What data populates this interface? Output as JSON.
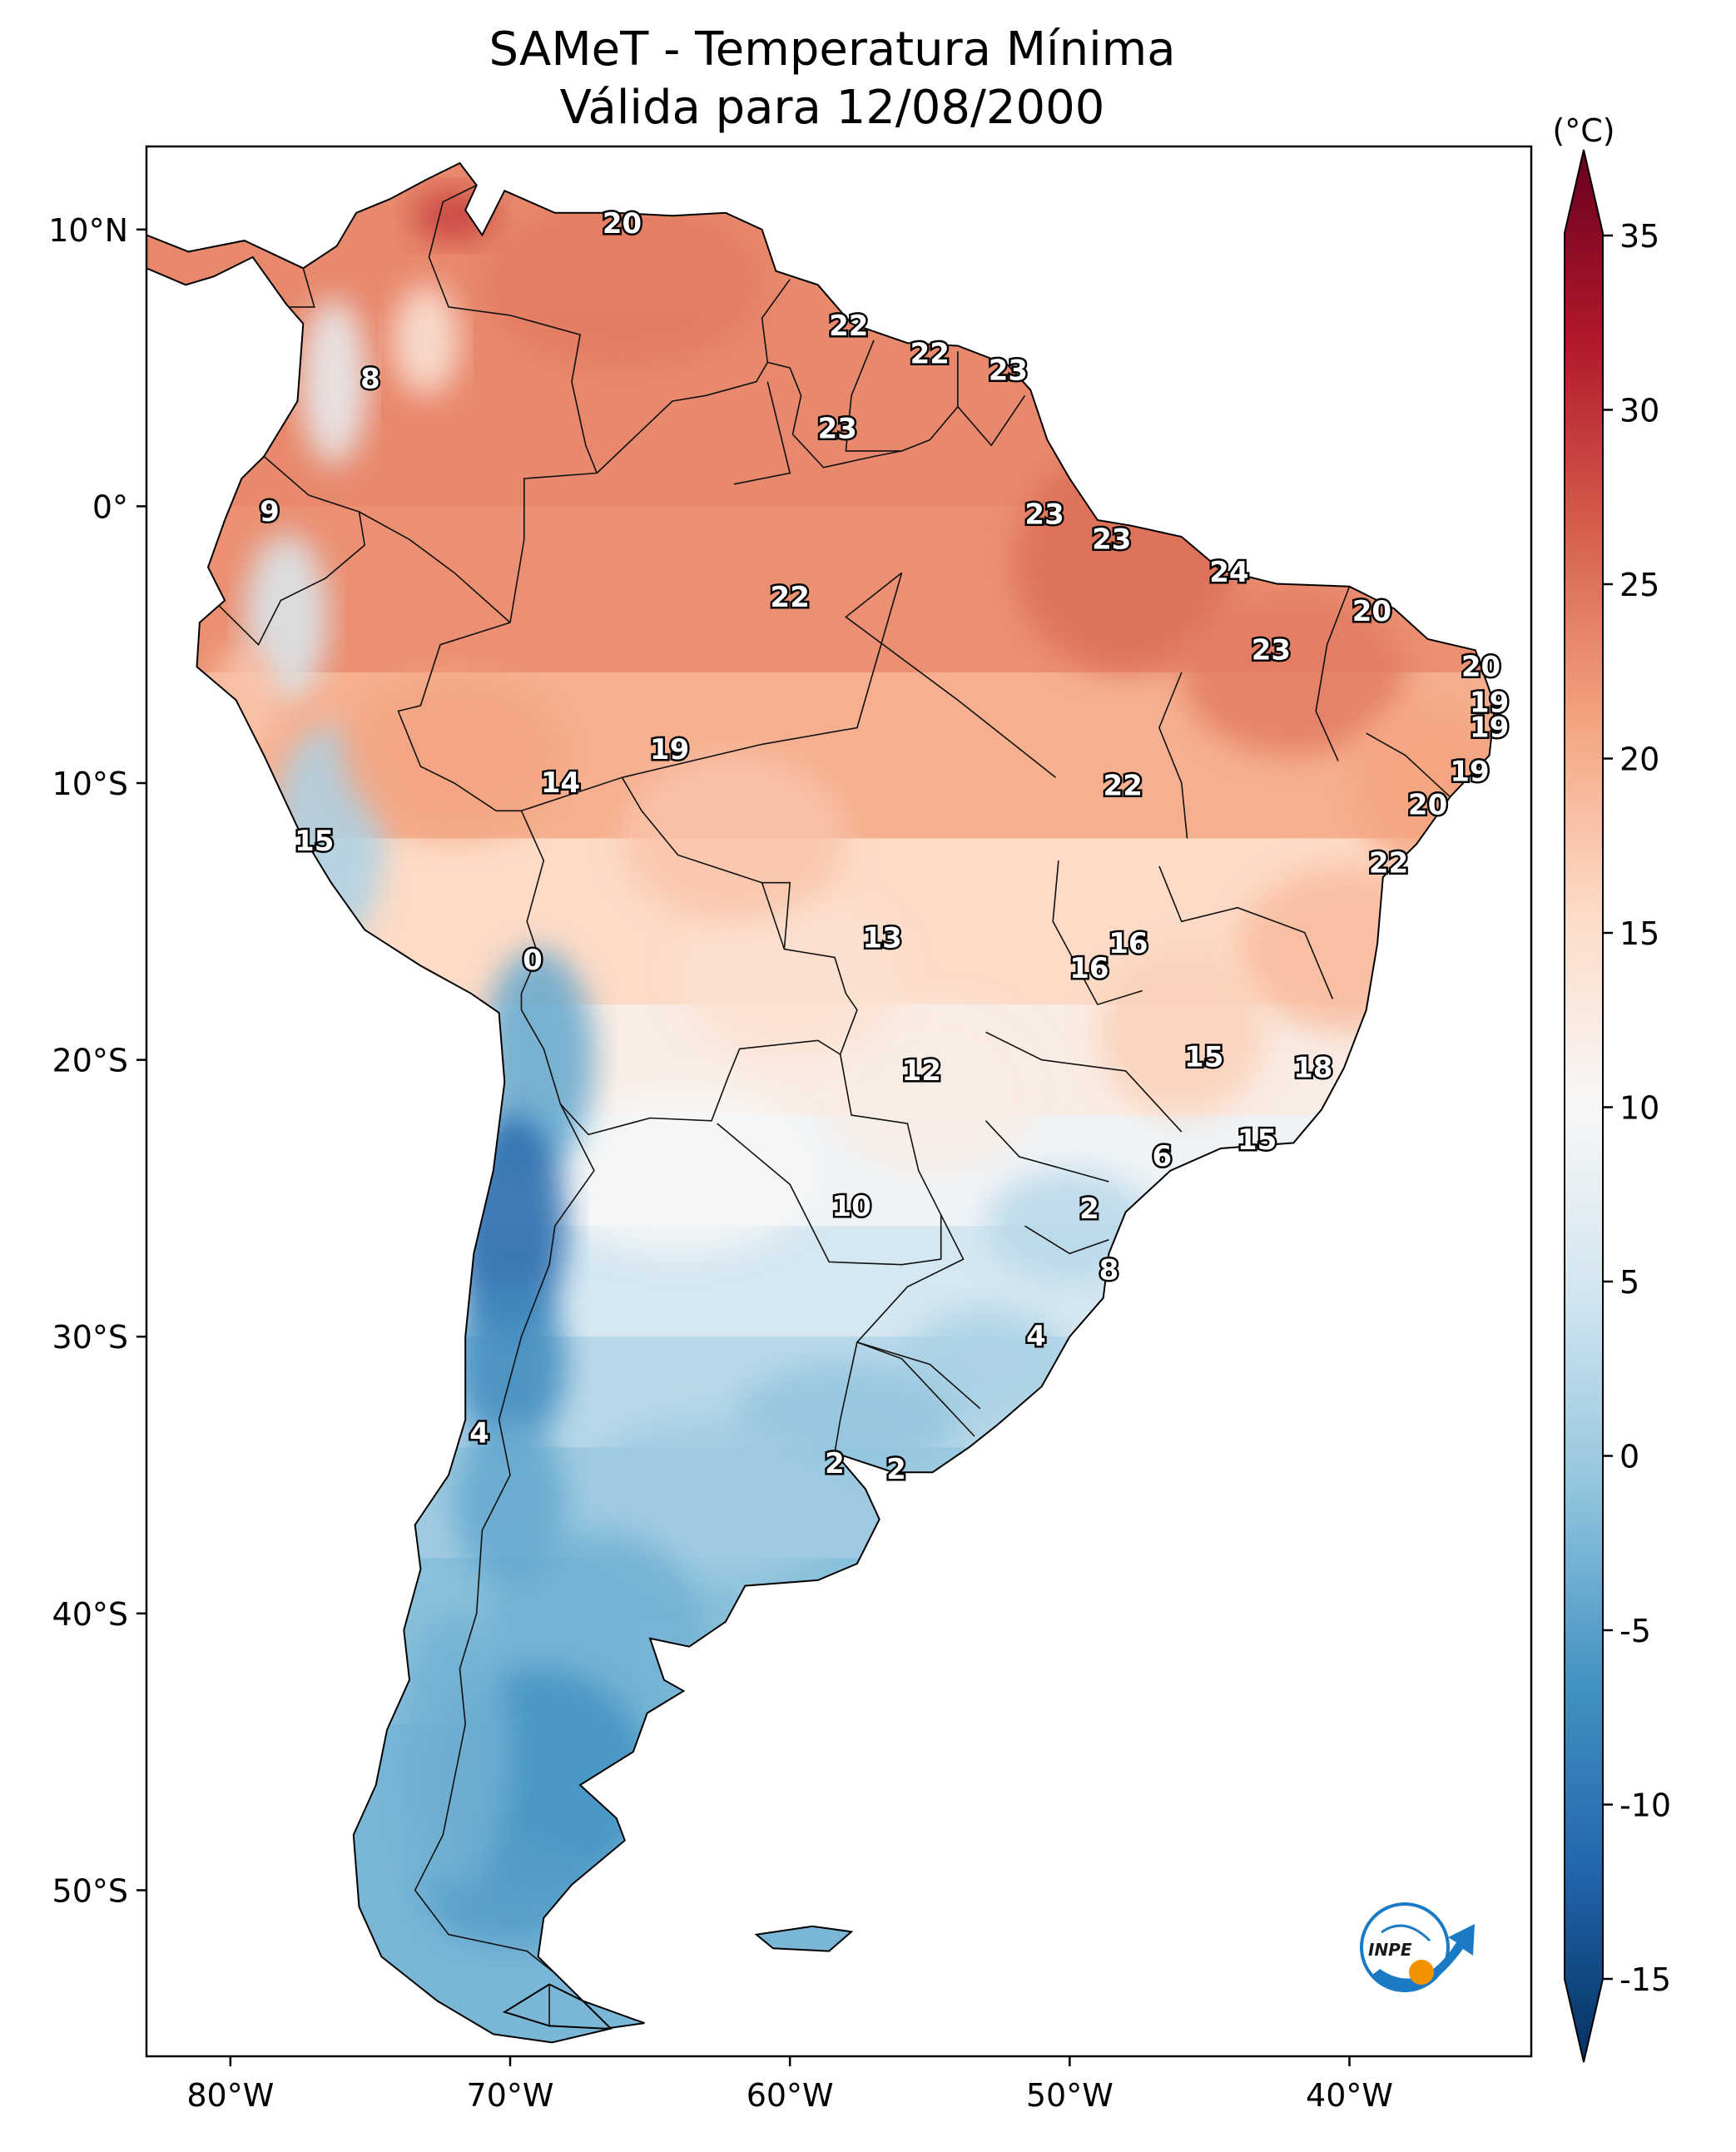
{
  "title": {
    "line1": "SAMeT - Temperatura Mínima",
    "line2": "Válida para 12/08/2000"
  },
  "axes": {
    "lon_ticks": [
      "80°W",
      "70°W",
      "60°W",
      "50°W",
      "40°W"
    ],
    "lat_ticks": [
      "10°N",
      "0°",
      "10°S",
      "20°S",
      "30°S",
      "40°S",
      "50°S"
    ],
    "lon_values": [
      -80,
      -70,
      -60,
      -50,
      -40
    ],
    "lat_values": [
      10,
      0,
      -10,
      -20,
      -30,
      -40,
      -50
    ],
    "lon_range": [
      -83,
      -33.5
    ],
    "lat_range": [
      -56,
      13
    ]
  },
  "colorbar": {
    "unit": "(°C)",
    "ticks": [
      "35",
      "30",
      "25",
      "20",
      "15",
      "10",
      "5",
      "0",
      "-5",
      "-10",
      "-15"
    ],
    "tick_values": [
      35,
      30,
      25,
      20,
      15,
      10,
      5,
      0,
      -5,
      -10,
      -15
    ],
    "range": [
      -15,
      35
    ],
    "colormap": "RdBu_r",
    "colors": [
      "#053061",
      "#2166ac",
      "#4393c3",
      "#92c5de",
      "#d1e5f0",
      "#f7f7f7",
      "#fddbc7",
      "#f4a582",
      "#d6604d",
      "#b2182b",
      "#67001f"
    ]
  },
  "logo": {
    "text": "INPE",
    "colors": [
      "#1a7bc4",
      "#f39200"
    ]
  },
  "chart_data": {
    "type": "heatmap",
    "variable": "Temperatura Mínima",
    "unit": "°C",
    "point_labels": [
      {
        "lon": -66.0,
        "lat": 10.2,
        "value": "20"
      },
      {
        "lon": -57.9,
        "lat": 6.5,
        "value": "22"
      },
      {
        "lon": -55.0,
        "lat": 5.5,
        "value": "22"
      },
      {
        "lon": -52.2,
        "lat": 4.9,
        "value": "23"
      },
      {
        "lon": -58.3,
        "lat": 2.8,
        "value": "23"
      },
      {
        "lon": -75.0,
        "lat": 4.6,
        "value": "8"
      },
      {
        "lon": -78.6,
        "lat": -0.2,
        "value": "9"
      },
      {
        "lon": -50.9,
        "lat": -0.3,
        "value": "23"
      },
      {
        "lon": -48.5,
        "lat": -1.2,
        "value": "23"
      },
      {
        "lon": -44.3,
        "lat": -2.4,
        "value": "24"
      },
      {
        "lon": -39.2,
        "lat": -3.8,
        "value": "20"
      },
      {
        "lon": -60.0,
        "lat": -3.3,
        "value": "22"
      },
      {
        "lon": -42.8,
        "lat": -5.2,
        "value": "23"
      },
      {
        "lon": -35.3,
        "lat": -5.8,
        "value": "20"
      },
      {
        "lon": -35.0,
        "lat": -7.1,
        "value": "19"
      },
      {
        "lon": -35.0,
        "lat": -8.0,
        "value": "19"
      },
      {
        "lon": -35.7,
        "lat": -9.6,
        "value": "19"
      },
      {
        "lon": -37.2,
        "lat": -10.8,
        "value": "20"
      },
      {
        "lon": -38.6,
        "lat": -12.9,
        "value": "22"
      },
      {
        "lon": -64.3,
        "lat": -8.8,
        "value": "19"
      },
      {
        "lon": -68.2,
        "lat": -10.0,
        "value": "14"
      },
      {
        "lon": -48.1,
        "lat": -10.1,
        "value": "22"
      },
      {
        "lon": -77.0,
        "lat": -12.1,
        "value": "15"
      },
      {
        "lon": -56.7,
        "lat": -15.6,
        "value": "13"
      },
      {
        "lon": -47.9,
        "lat": -15.8,
        "value": "16"
      },
      {
        "lon": -49.3,
        "lat": -16.7,
        "value": "16"
      },
      {
        "lon": -69.2,
        "lat": -16.4,
        "value": "0"
      },
      {
        "lon": -55.3,
        "lat": -20.4,
        "value": "12"
      },
      {
        "lon": -45.2,
        "lat": -19.9,
        "value": "15"
      },
      {
        "lon": -41.3,
        "lat": -20.3,
        "value": "18"
      },
      {
        "lon": -43.3,
        "lat": -22.9,
        "value": "15"
      },
      {
        "lon": -46.7,
        "lat": -23.5,
        "value": "6"
      },
      {
        "lon": -57.8,
        "lat": -25.3,
        "value": "10"
      },
      {
        "lon": -49.3,
        "lat": -25.4,
        "value": "2"
      },
      {
        "lon": -48.6,
        "lat": -27.6,
        "value": "8"
      },
      {
        "lon": -51.2,
        "lat": -30.0,
        "value": "4"
      },
      {
        "lon": -71.1,
        "lat": -33.5,
        "value": "4"
      },
      {
        "lon": -58.4,
        "lat": -34.6,
        "value": "2"
      },
      {
        "lon": -56.2,
        "lat": -34.8,
        "value": "2"
      }
    ]
  }
}
